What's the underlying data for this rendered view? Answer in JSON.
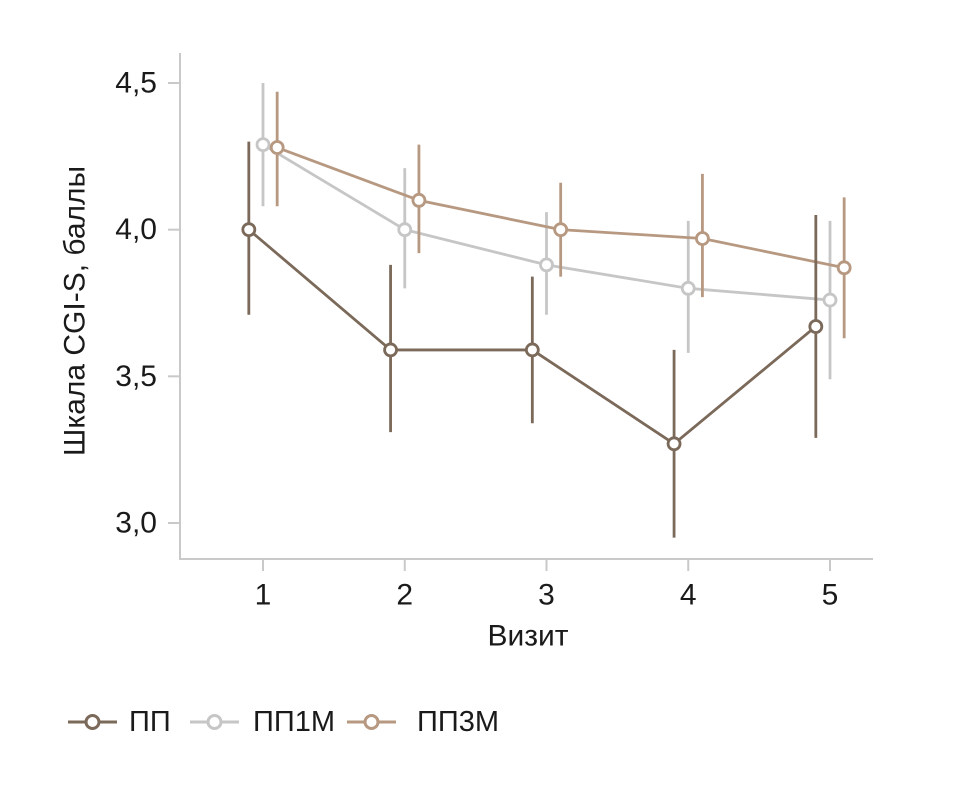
{
  "figure": {
    "background": "#ffffff"
  },
  "chart_data": {
    "type": "line",
    "title": "",
    "xlabel": "Визит",
    "ylabel": "Шкала CGI-S, баллы",
    "x": [
      1,
      2,
      3,
      4,
      5
    ],
    "x_tick_labels": [
      "1",
      "2",
      "3",
      "4",
      "5"
    ],
    "y_ticks": [
      4.5,
      4.0,
      3.5,
      3.0
    ],
    "y_tick_labels": [
      "4,5",
      "4,0",
      "3,5",
      "3,0"
    ],
    "ylim": [
      2.88,
      4.6
    ],
    "xlim": [
      0.42,
      5.3
    ],
    "grid": "off",
    "error_bars": true,
    "error_bar_caps": false,
    "marker": "open-circle",
    "legend_position": "bottom-left",
    "draw_order": [
      1,
      2,
      0
    ],
    "series": [
      {
        "name": "ПП",
        "color": "#7b695a",
        "x_offset": -0.1,
        "values": [
          4.0,
          3.59,
          3.59,
          3.27,
          3.67
        ],
        "err_low": [
          3.71,
          3.31,
          3.34,
          2.95,
          3.29
        ],
        "err_high": [
          4.3,
          3.88,
          3.84,
          3.59,
          4.05
        ]
      },
      {
        "name": "ПП1М",
        "color": "#c6c6c6",
        "x_offset": 0,
        "values": [
          4.29,
          4.0,
          3.88,
          3.8,
          3.76
        ],
        "err_low": [
          4.08,
          3.8,
          3.71,
          3.58,
          3.49
        ],
        "err_high": [
          4.5,
          4.21,
          4.06,
          4.03,
          4.03
        ]
      },
      {
        "name": "ПП3М",
        "color": "#b79881",
        "x_offset": 0.1,
        "values": [
          4.28,
          4.1,
          4.0,
          3.97,
          3.87
        ],
        "err_low": [
          4.08,
          3.92,
          3.84,
          3.77,
          3.63
        ],
        "err_high": [
          4.47,
          4.29,
          4.16,
          4.19,
          4.11
        ]
      }
    ],
    "style": {
      "axis_color": "#c9c9c9",
      "text_color": "#1a1a1a",
      "marker_fill": "#ffffff"
    }
  }
}
